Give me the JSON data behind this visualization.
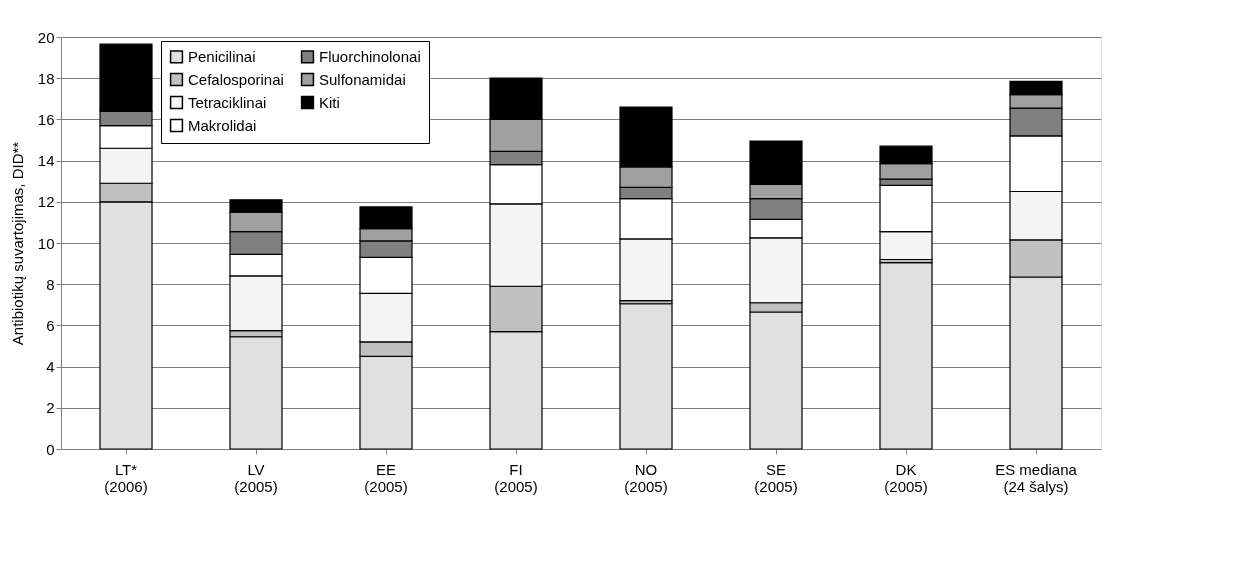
{
  "chart_data": {
    "type": "bar",
    "stacked": true,
    "ylabel": "Antibiotikų suvartojimas, DID**",
    "categories": [
      "LT*\n(2006)",
      "LV\n(2005)",
      "EE\n(2005)",
      "FI\n(2005)",
      "NO\n(2005)",
      "SE\n(2005)",
      "DK\n(2005)",
      "ES mediana\n(24 šalys)"
    ],
    "series": [
      {
        "name": "Penicilinai",
        "color": "#e0e0e0",
        "values": [
          12.0,
          5.45,
          4.5,
          5.7,
          7.05,
          6.65,
          9.05,
          8.35
        ]
      },
      {
        "name": "Cefalosporinai",
        "color": "#c0c0c0",
        "values": [
          0.9,
          0.3,
          0.7,
          2.2,
          0.15,
          0.45,
          0.15,
          1.8
        ]
      },
      {
        "name": "Tetraciklinai",
        "color": "#f4f4f4",
        "values": [
          1.7,
          2.65,
          2.35,
          4.0,
          3.0,
          3.15,
          1.35,
          2.35
        ]
      },
      {
        "name": "Makrolidai",
        "color": "#ffffff",
        "values": [
          1.1,
          1.05,
          1.75,
          1.9,
          1.95,
          0.9,
          2.25,
          2.7
        ]
      },
      {
        "name": "Fluorchinolonai",
        "color": "#808080",
        "values": [
          0.7,
          1.1,
          0.8,
          0.65,
          0.55,
          1.0,
          0.3,
          1.35
        ]
      },
      {
        "name": "Sulfonamidai",
        "color": "#a0a0a0",
        "values": [
          0.0,
          0.95,
          0.6,
          1.55,
          1.0,
          0.7,
          0.75,
          0.65
        ]
      },
      {
        "name": "Kiti",
        "color": "#000000",
        "values": [
          3.25,
          0.6,
          1.05,
          2.0,
          2.9,
          2.1,
          0.85,
          0.65
        ]
      }
    ],
    "ylim": [
      0,
      20
    ],
    "yticks": [
      0,
      2,
      4,
      6,
      8,
      10,
      12,
      14,
      16,
      18,
      20
    ],
    "grid": "y",
    "legend": "top left"
  }
}
